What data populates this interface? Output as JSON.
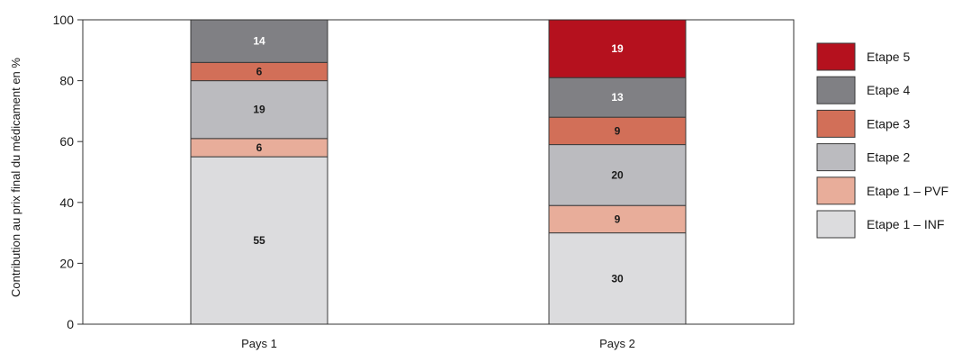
{
  "chart_data": {
    "type": "bar",
    "stacked": true,
    "categories": [
      "Pays 1",
      "Pays 2"
    ],
    "ylabel": "Contribution au prix final du médicament en %",
    "ylim": [
      0,
      100
    ],
    "yticks": [
      0,
      20,
      40,
      60,
      80,
      100
    ],
    "grid": false,
    "legend_position": "right",
    "series": [
      {
        "name": "Etape 1 – INF",
        "values": [
          55,
          30
        ],
        "color": "#dcdcde",
        "label_color": "#1a1a1a"
      },
      {
        "name": "Etape 1 – PVF",
        "values": [
          6,
          9
        ],
        "color": "#e8ad9a",
        "label_color": "#1a1a1a"
      },
      {
        "name": "Etape 2",
        "values": [
          19,
          20
        ],
        "color": "#bbbbbf",
        "label_color": "#1a1a1a"
      },
      {
        "name": "Etape 3",
        "values": [
          6,
          9
        ],
        "color": "#d26f58",
        "label_color": "#1a1a1a"
      },
      {
        "name": "Etape 4",
        "values": [
          14,
          13
        ],
        "color": "#808084",
        "label_color": "#ffffff"
      },
      {
        "name": "Etape 5",
        "values": [
          null,
          19
        ],
        "color": "#b5111e",
        "label_color": "#ffffff"
      }
    ]
  }
}
